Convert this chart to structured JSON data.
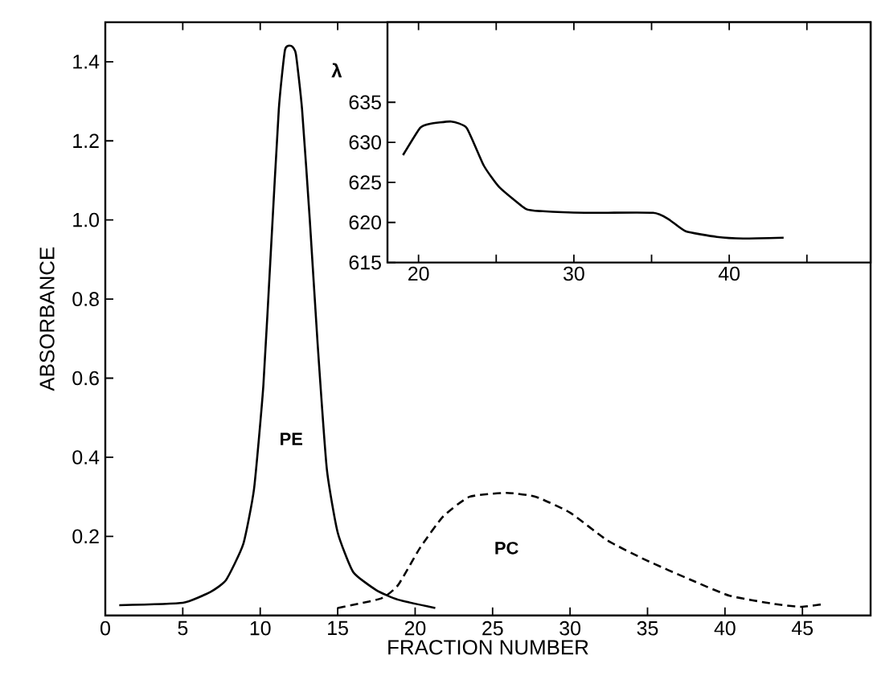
{
  "chart_data": [
    {
      "type": "line",
      "xlabel": "FRACTION NUMBER",
      "ylabel": "ABSORBANCE",
      "xlim": [
        0,
        49.4
      ],
      "ylim": [
        0,
        1.5
      ],
      "xticks": [
        0,
        5,
        10,
        15,
        20,
        25,
        30,
        35,
        40,
        45
      ],
      "yticks": [
        0.2,
        0.4,
        0.6,
        0.8,
        {
          "value": 1.0,
          "label": "1.0"
        },
        1.2,
        1.4
      ],
      "series": [
        {
          "name": "PE",
          "color": "#000000",
          "line_style": "solid",
          "x": [
            0.9,
            5.0,
            6.8,
            7.8,
            8.9,
            9.6,
            10.2,
            10.7,
            11.2,
            11.6,
            12.0,
            12.3,
            12.7,
            13.2,
            13.7,
            14.3,
            15.0,
            16.0,
            17.5,
            18.9,
            21.3
          ],
          "values": [
            0.026,
            0.032,
            0.06,
            0.09,
            0.18,
            0.32,
            0.58,
            0.93,
            1.28,
            1.43,
            1.44,
            1.42,
            1.28,
            1.0,
            0.69,
            0.37,
            0.21,
            0.11,
            0.064,
            0.04,
            0.019
          ]
        },
        {
          "name": "PC",
          "color": "#000000",
          "line_style": "dashed",
          "x": [
            15.0,
            17.8,
            18.9,
            20.3,
            21.8,
            23.5,
            25.9,
            27.8,
            30.0,
            32.4,
            34.9,
            37.8,
            40.3,
            43.2,
            44.9,
            46.4
          ],
          "values": [
            0.019,
            0.043,
            0.077,
            0.17,
            0.25,
            0.3,
            0.31,
            0.3,
            0.26,
            0.19,
            0.14,
            0.09,
            0.05,
            0.029,
            0.022,
            0.029
          ]
        }
      ]
    },
    {
      "type": "line",
      "ylabel": "λ",
      "xlim": [
        18,
        49.1
      ],
      "ylim": [
        615,
        645
      ],
      "xticks": [
        20,
        {
          "value": 25,
          "label": null
        },
        30,
        {
          "value": 35,
          "label": null
        },
        40,
        {
          "value": 45,
          "label": null
        }
      ],
      "yticks": [
        615,
        620,
        625,
        630,
        635
      ],
      "series": [
        {
          "color": "#000000",
          "line_style": "solid",
          "x": [
            19.0,
            20.1,
            20.7,
            22.1,
            23.1,
            24.2,
            25.2,
            26.9,
            28.0,
            30.7,
            35.1,
            36.1,
            37.2,
            39.2,
            40.9,
            43.5
          ],
          "values": [
            628.4,
            631.8,
            632.3,
            632.6,
            631.8,
            627.1,
            624.4,
            621.7,
            621.4,
            621.2,
            621.2,
            620.4,
            618.9,
            618.2,
            618.0,
            618.1
          ]
        }
      ]
    }
  ]
}
